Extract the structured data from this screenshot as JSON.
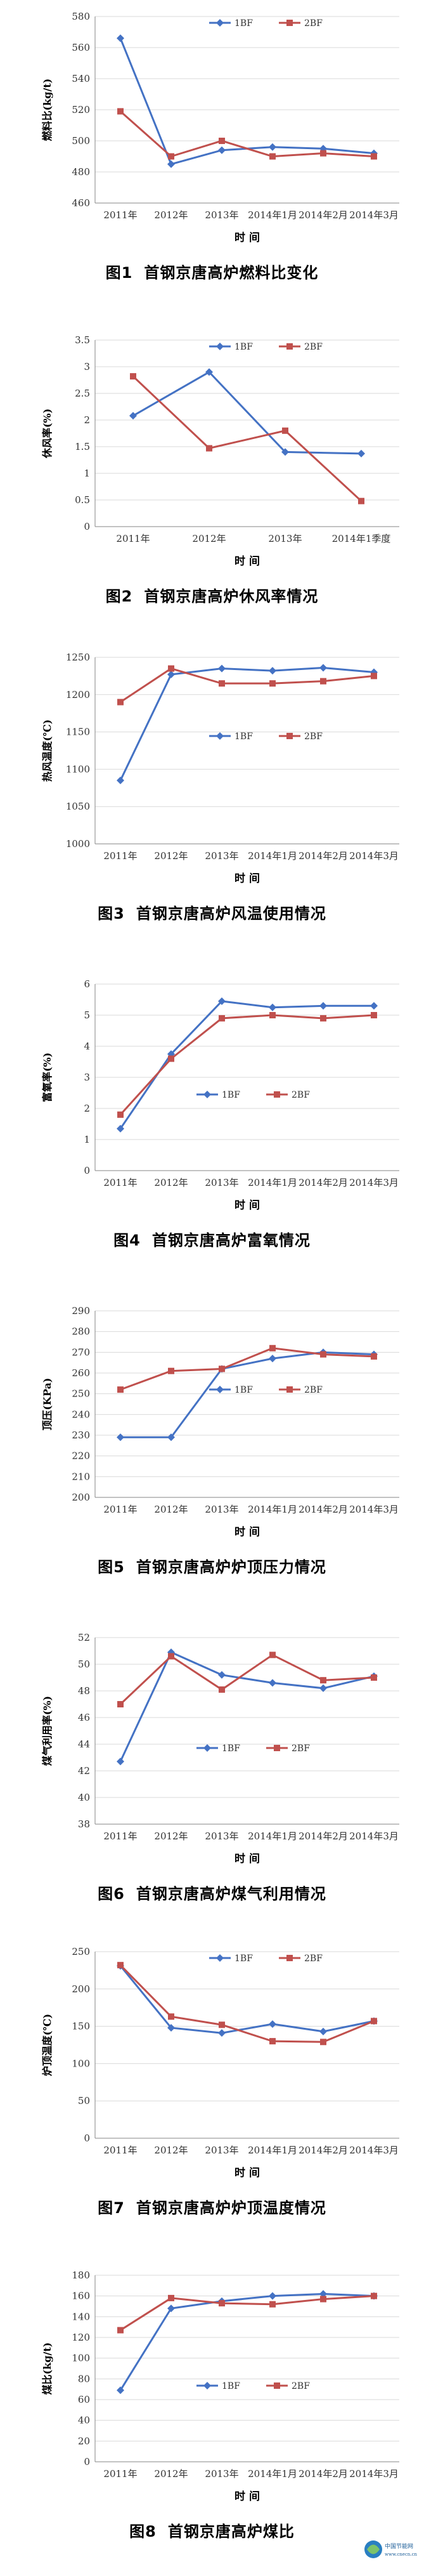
{
  "chart_data": [
    {
      "type": "line",
      "caption_num": "图1",
      "title": "首钢京唐高炉燃料比变化",
      "xlabel": "时  间",
      "ylabel": "燃料比(kg/t)",
      "categories": [
        "2011年",
        "2012年",
        "2013年",
        "2014年1月",
        "2014年2月",
        "2014年3月"
      ],
      "ylim": [
        460,
        580
      ],
      "yticks": [
        460,
        480,
        500,
        520,
        540,
        560,
        580
      ],
      "legend_position": "top-right",
      "series": [
        {
          "name": "1BF",
          "color": "#4472c4",
          "marker": "diamond",
          "values": [
            566,
            485,
            494,
            496,
            495,
            492
          ]
        },
        {
          "name": "2BF",
          "color": "#c0504d",
          "marker": "square",
          "values": [
            519,
            490,
            500,
            490,
            492,
            490
          ]
        }
      ]
    },
    {
      "type": "line",
      "caption_num": "图2",
      "title": "首钢京唐高炉休风率情况",
      "xlabel": "时  间",
      "ylabel": "休风率(%)",
      "categories": [
        "2011年",
        "2012年",
        "2013年",
        "2014年1季度"
      ],
      "ylim": [
        0,
        3.5
      ],
      "yticks": [
        0,
        0.5,
        1,
        1.5,
        2,
        2.5,
        3,
        3.5
      ],
      "legend_position": "top-right",
      "series": [
        {
          "name": "1BF",
          "color": "#4472c4",
          "marker": "diamond",
          "values": [
            2.08,
            2.9,
            1.4,
            1.37
          ]
        },
        {
          "name": "2BF",
          "color": "#c0504d",
          "marker": "square",
          "values": [
            2.82,
            1.47,
            1.8,
            0.48
          ]
        }
      ]
    },
    {
      "type": "line",
      "caption_num": "图3",
      "title": "首钢京唐高炉风温使用情况",
      "xlabel": "时  间",
      "ylabel": "热风温度(℃)",
      "categories": [
        "2011年",
        "2012年",
        "2013年",
        "2014年1月",
        "2014年2月",
        "2014年3月"
      ],
      "ylim": [
        1000,
        1250
      ],
      "yticks": [
        1000,
        1050,
        1100,
        1150,
        1200,
        1250
      ],
      "legend_position": "center-right",
      "series": [
        {
          "name": "1BF",
          "color": "#4472c4",
          "marker": "diamond",
          "values": [
            1085,
            1227,
            1235,
            1232,
            1236,
            1230
          ]
        },
        {
          "name": "2BF",
          "color": "#c0504d",
          "marker": "square",
          "values": [
            1190,
            1235,
            1215,
            1215,
            1218,
            1225
          ]
        }
      ]
    },
    {
      "type": "line",
      "caption_num": "图4",
      "title": "首钢京唐高炉富氧情况",
      "xlabel": "时  间",
      "ylabel": "富氧率(%)",
      "categories": [
        "2011年",
        "2012年",
        "2013年",
        "2014年1月",
        "2014年2月",
        "2014年3月"
      ],
      "ylim": [
        0,
        6
      ],
      "yticks": [
        0,
        1,
        2,
        3,
        4,
        5,
        6
      ],
      "legend_position": "center",
      "series": [
        {
          "name": "1BF",
          "color": "#4472c4",
          "marker": "diamond",
          "values": [
            1.35,
            3.75,
            5.45,
            5.25,
            5.3,
            5.3
          ]
        },
        {
          "name": "2BF",
          "color": "#c0504d",
          "marker": "square",
          "values": [
            1.8,
            3.6,
            4.9,
            5.0,
            4.9,
            5.0
          ]
        }
      ]
    },
    {
      "type": "line",
      "caption_num": "图5",
      "title": "首钢京唐高炉炉顶压力情况",
      "xlabel": "时  间",
      "ylabel": "顶压(KPa)",
      "categories": [
        "2011年",
        "2012年",
        "2013年",
        "2014年1月",
        "2014年2月",
        "2014年3月"
      ],
      "ylim": [
        200,
        290
      ],
      "yticks": [
        200,
        210,
        220,
        230,
        240,
        250,
        260,
        270,
        280,
        290
      ],
      "legend_position": "center-right",
      "series": [
        {
          "name": "1BF",
          "color": "#4472c4",
          "marker": "diamond",
          "values": [
            229,
            229,
            262,
            267,
            270,
            269
          ]
        },
        {
          "name": "2BF",
          "color": "#c0504d",
          "marker": "square",
          "values": [
            252,
            261,
            262,
            272,
            269,
            268
          ]
        }
      ]
    },
    {
      "type": "line",
      "caption_num": "图6",
      "title": "首钢京唐高炉煤气利用情况",
      "xlabel": "时  间",
      "ylabel": "煤气利用率(%)",
      "categories": [
        "2011年",
        "2012年",
        "2013年",
        "2014年1月",
        "2014年2月",
        "2014年3月"
      ],
      "ylim": [
        38,
        52
      ],
      "yticks": [
        38,
        40,
        42,
        44,
        46,
        48,
        50,
        52
      ],
      "legend_position": "center",
      "series": [
        {
          "name": "1BF",
          "color": "#4472c4",
          "marker": "diamond",
          "values": [
            42.7,
            50.9,
            49.2,
            48.6,
            48.2,
            49.1
          ]
        },
        {
          "name": "2BF",
          "color": "#c0504d",
          "marker": "square",
          "values": [
            47.0,
            50.6,
            48.1,
            50.7,
            48.8,
            49.0
          ]
        }
      ]
    },
    {
      "type": "line",
      "caption_num": "图7",
      "title": "首钢京唐高炉炉顶温度情况",
      "xlabel": "时  间",
      "ylabel": "炉顶温度(℃)",
      "categories": [
        "2011年",
        "2012年",
        "2013年",
        "2014年1月",
        "2014年2月",
        "2014年3月"
      ],
      "ylim": [
        0,
        250
      ],
      "yticks": [
        0,
        50,
        100,
        150,
        200,
        250
      ],
      "legend_position": "top-right",
      "series": [
        {
          "name": "1BF",
          "color": "#4472c4",
          "marker": "diamond",
          "values": [
            231,
            148,
            141,
            153,
            143,
            157
          ]
        },
        {
          "name": "2BF",
          "color": "#c0504d",
          "marker": "square",
          "values": [
            232,
            163,
            152,
            130,
            129,
            157
          ]
        }
      ]
    },
    {
      "type": "line",
      "caption_num": "图8",
      "title": "首钢京唐高炉煤比",
      "xlabel": "时  间",
      "ylabel": "煤比(kg/t)",
      "categories": [
        "2011年",
        "2012年",
        "2013年",
        "2014年1月",
        "2014年2月",
        "2014年3月"
      ],
      "ylim": [
        0,
        180
      ],
      "yticks": [
        0,
        20,
        40,
        60,
        80,
        100,
        120,
        140,
        160,
        180
      ],
      "legend_position": "center",
      "series": [
        {
          "name": "1BF",
          "color": "#4472c4",
          "marker": "diamond",
          "values": [
            69,
            148,
            155,
            160,
            162,
            160
          ]
        },
        {
          "name": "2BF",
          "color": "#c0504d",
          "marker": "square",
          "values": [
            127,
            158,
            153,
            152,
            157,
            160
          ]
        }
      ]
    }
  ],
  "watermark": {
    "line1": "中国节能网",
    "line2": "www.cnecn.cn"
  }
}
